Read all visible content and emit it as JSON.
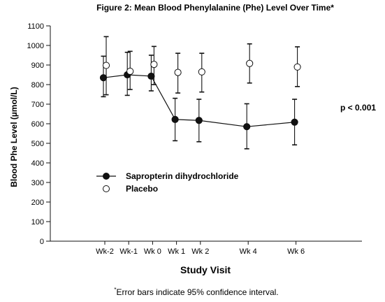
{
  "chart_data": {
    "type": "line",
    "title": "Figure 2: Mean Blood Phenylalanine (Phe) Level Over Time*",
    "xlabel": "Study Visit",
    "ylabel": "Blood Phe Level (µmol/L)",
    "categories": [
      "Wk-2",
      "Wk-1",
      "Wk 0",
      "Wk 1",
      "Wk 2",
      "Wk 4",
      "Wk 6"
    ],
    "x_positions": [
      -2,
      -1,
      0,
      1,
      2,
      4,
      6
    ],
    "ylim": [
      0,
      1100
    ],
    "yticks": [
      0,
      100,
      200,
      300,
      400,
      500,
      600,
      700,
      800,
      900,
      1000,
      1100
    ],
    "series": [
      {
        "name": "Sapropterin dihydrochloride",
        "marker": "filled-circle",
        "connected": true,
        "values": [
          835,
          850,
          843,
          622,
          617,
          585,
          608
        ],
        "ci_lower": [
          738,
          745,
          768,
          513,
          508,
          472,
          492
        ],
        "ci_upper": [
          945,
          965,
          950,
          730,
          725,
          702,
          725
        ]
      },
      {
        "name": "Placebo",
        "marker": "open-circle",
        "connected": false,
        "values": [
          898,
          868,
          903,
          862,
          865,
          908,
          890
        ],
        "ci_lower": [
          748,
          775,
          800,
          757,
          762,
          808,
          790
        ],
        "ci_upper": [
          1045,
          970,
          995,
          960,
          960,
          1008,
          993
        ]
      }
    ],
    "annotation": "p < 0.001",
    "legend_position": "center-left",
    "footnote_mark": "*",
    "footnote": "Error bars indicate 95% confidence interval."
  }
}
